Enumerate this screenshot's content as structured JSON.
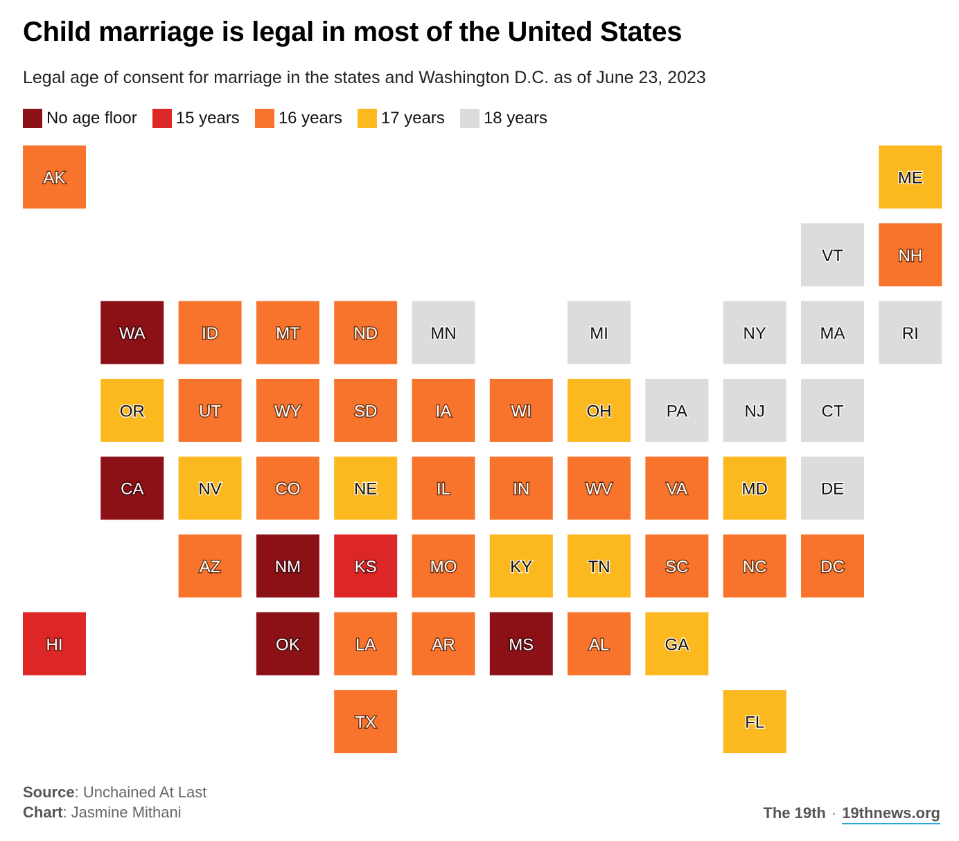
{
  "title": "Child marriage is legal in most of the United States",
  "subtitle": "Legal age of consent for marriage in the states and Washington D.C. as of June 23, 2023",
  "legend": [
    {
      "key": "none",
      "label": "No age floor",
      "color": "#8b1117"
    },
    {
      "key": "15",
      "label": "15 years",
      "color": "#dd2727"
    },
    {
      "key": "16",
      "label": "16 years",
      "color": "#f8732b"
    },
    {
      "key": "17",
      "label": "17 years",
      "color": "#fbb81f"
    },
    {
      "key": "18",
      "label": "18 years",
      "color": "#dcdcdc"
    }
  ],
  "chart_data": {
    "type": "tile-grid-map",
    "title": "Child marriage is legal in most of the United States",
    "subtitle": "Legal age of consent for marriage in the states and Washington D.C. as of June 23, 2023",
    "tiles": [
      {
        "state": "AK",
        "col": 0,
        "row": 0,
        "category": "16"
      },
      {
        "state": "ME",
        "col": 11,
        "row": 0,
        "category": "17"
      },
      {
        "state": "VT",
        "col": 10,
        "row": 1,
        "category": "18"
      },
      {
        "state": "NH",
        "col": 11,
        "row": 1,
        "category": "16"
      },
      {
        "state": "WA",
        "col": 1,
        "row": 2,
        "category": "none"
      },
      {
        "state": "ID",
        "col": 2,
        "row": 2,
        "category": "16"
      },
      {
        "state": "MT",
        "col": 3,
        "row": 2,
        "category": "16"
      },
      {
        "state": "ND",
        "col": 4,
        "row": 2,
        "category": "16"
      },
      {
        "state": "MN",
        "col": 5,
        "row": 2,
        "category": "18"
      },
      {
        "state": "MI",
        "col": 7,
        "row": 2,
        "category": "18"
      },
      {
        "state": "NY",
        "col": 9,
        "row": 2,
        "category": "18"
      },
      {
        "state": "MA",
        "col": 10,
        "row": 2,
        "category": "18"
      },
      {
        "state": "RI",
        "col": 11,
        "row": 2,
        "category": "18"
      },
      {
        "state": "OR",
        "col": 1,
        "row": 3,
        "category": "17"
      },
      {
        "state": "UT",
        "col": 2,
        "row": 3,
        "category": "16"
      },
      {
        "state": "WY",
        "col": 3,
        "row": 3,
        "category": "16"
      },
      {
        "state": "SD",
        "col": 4,
        "row": 3,
        "category": "16"
      },
      {
        "state": "IA",
        "col": 5,
        "row": 3,
        "category": "16"
      },
      {
        "state": "WI",
        "col": 6,
        "row": 3,
        "category": "16"
      },
      {
        "state": "OH",
        "col": 7,
        "row": 3,
        "category": "17"
      },
      {
        "state": "PA",
        "col": 8,
        "row": 3,
        "category": "18"
      },
      {
        "state": "NJ",
        "col": 9,
        "row": 3,
        "category": "18"
      },
      {
        "state": "CT",
        "col": 10,
        "row": 3,
        "category": "18"
      },
      {
        "state": "CA",
        "col": 1,
        "row": 4,
        "category": "none"
      },
      {
        "state": "NV",
        "col": 2,
        "row": 4,
        "category": "17"
      },
      {
        "state": "CO",
        "col": 3,
        "row": 4,
        "category": "16"
      },
      {
        "state": "NE",
        "col": 4,
        "row": 4,
        "category": "17"
      },
      {
        "state": "IL",
        "col": 5,
        "row": 4,
        "category": "16"
      },
      {
        "state": "IN",
        "col": 6,
        "row": 4,
        "category": "16"
      },
      {
        "state": "WV",
        "col": 7,
        "row": 4,
        "category": "16"
      },
      {
        "state": "VA",
        "col": 8,
        "row": 4,
        "category": "16"
      },
      {
        "state": "MD",
        "col": 9,
        "row": 4,
        "category": "17"
      },
      {
        "state": "DE",
        "col": 10,
        "row": 4,
        "category": "18"
      },
      {
        "state": "AZ",
        "col": 2,
        "row": 5,
        "category": "16"
      },
      {
        "state": "NM",
        "col": 3,
        "row": 5,
        "category": "none"
      },
      {
        "state": "KS",
        "col": 4,
        "row": 5,
        "category": "15"
      },
      {
        "state": "MO",
        "col": 5,
        "row": 5,
        "category": "16"
      },
      {
        "state": "KY",
        "col": 6,
        "row": 5,
        "category": "17"
      },
      {
        "state": "TN",
        "col": 7,
        "row": 5,
        "category": "17"
      },
      {
        "state": "SC",
        "col": 8,
        "row": 5,
        "category": "16"
      },
      {
        "state": "NC",
        "col": 9,
        "row": 5,
        "category": "16"
      },
      {
        "state": "DC",
        "col": 10,
        "row": 5,
        "category": "16"
      },
      {
        "state": "HI",
        "col": 0,
        "row": 6,
        "category": "15"
      },
      {
        "state": "OK",
        "col": 3,
        "row": 6,
        "category": "none"
      },
      {
        "state": "LA",
        "col": 4,
        "row": 6,
        "category": "16"
      },
      {
        "state": "AR",
        "col": 5,
        "row": 6,
        "category": "16"
      },
      {
        "state": "MS",
        "col": 6,
        "row": 6,
        "category": "none"
      },
      {
        "state": "AL",
        "col": 7,
        "row": 6,
        "category": "16"
      },
      {
        "state": "GA",
        "col": 8,
        "row": 6,
        "category": "17"
      },
      {
        "state": "TX",
        "col": 4,
        "row": 7,
        "category": "16"
      },
      {
        "state": "FL",
        "col": 9,
        "row": 7,
        "category": "17"
      }
    ]
  },
  "footer": {
    "source_label": "Source",
    "source_value": ": Unchained At Last",
    "chart_label": "Chart",
    "chart_value": ": Jasmine Mithani",
    "brand": "The 19th",
    "separator": "·",
    "site": "19thnews.org"
  }
}
